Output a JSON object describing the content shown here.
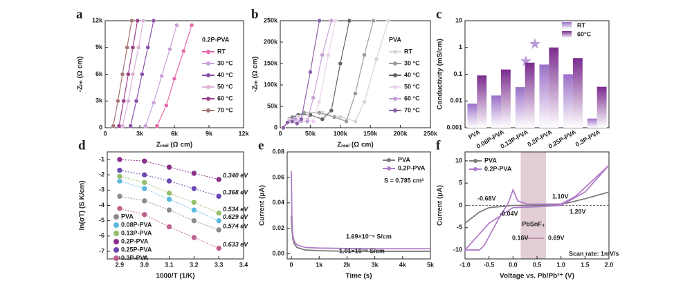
{
  "chart_data": [
    {
      "type": "line",
      "markers": true,
      "panel_label": "a",
      "x_label": "Zᵣₑₐₗ (Ω cm)",
      "y_label": "-Zᵢₘ (Ω cm)",
      "xlim": [
        0,
        12000
      ],
      "ylim": [
        0,
        12000
      ],
      "xticks": [
        0,
        {
          "value": 3000,
          "label": "3k"
        },
        {
          "value": 6000,
          "label": "6k"
        },
        {
          "value": 9000,
          "label": "9k"
        },
        {
          "value": 12000,
          "label": "12k"
        }
      ],
      "yticks": [
        0,
        {
          "value": 3000,
          "label": "3k"
        },
        {
          "value": 6000,
          "label": "6k"
        },
        {
          "value": 9000,
          "label": "9k"
        },
        {
          "value": 12000,
          "label": "12k"
        }
      ],
      "legend_title": "0.2P-PVA",
      "series": [
        {
          "name": "RT",
          "color": "#e46aa8",
          "x": [
            4500,
            5300,
            6000,
            6800,
            7500
          ],
          "values": [
            200,
            2500,
            5500,
            8600,
            11500
          ]
        },
        {
          "name": "30 °C",
          "color": "#c9a0dc",
          "x": [
            3500,
            4200,
            4900,
            5600,
            6200
          ],
          "values": [
            200,
            2800,
            5800,
            8800,
            11500
          ]
        },
        {
          "name": "40 °C",
          "color": "#8a4fa8",
          "x": [
            2200,
            2700,
            3200,
            3700,
            4200
          ],
          "values": [
            200,
            3000,
            6000,
            9000,
            12000
          ]
        },
        {
          "name": "50 °C",
          "color": "#d9b2d6",
          "x": [
            1500,
            2000,
            2400,
            2900,
            3300
          ],
          "values": [
            200,
            3000,
            6000,
            9000,
            12000
          ]
        },
        {
          "name": "60 °C",
          "color": "#9a3f8a",
          "x": [
            1200,
            1600,
            2000,
            2400,
            2800
          ],
          "values": [
            200,
            3000,
            6000,
            9000,
            12000
          ]
        },
        {
          "name": "70 °C",
          "color": "#a87474",
          "x": [
            700,
            1100,
            1500,
            1900,
            2300
          ],
          "values": [
            200,
            3000,
            6000,
            9000,
            12000
          ]
        }
      ]
    },
    {
      "type": "line",
      "markers": true,
      "panel_label": "b",
      "x_label": "Zᵣₑₐₗ (Ω cm)",
      "y_label": "-Zᵢₘ (Ω cm)",
      "xlim": [
        0,
        250000
      ],
      "ylim": [
        0,
        250000
      ],
      "xticks": [
        0,
        {
          "value": 50000,
          "label": "50k"
        },
        {
          "value": 100000,
          "label": "100k"
        },
        {
          "value": 150000,
          "label": "150k"
        },
        {
          "value": 200000,
          "label": "200k"
        },
        {
          "value": 250000,
          "label": "250k"
        }
      ],
      "yticks": [
        0,
        {
          "value": 50000,
          "label": "50k"
        },
        {
          "value": 100000,
          "label": "100k"
        },
        {
          "value": 150000,
          "label": "150k"
        },
        {
          "value": 200000,
          "label": "200k"
        },
        {
          "value": 250000,
          "label": "250k"
        }
      ],
      "legend_title": "PVA",
      "series": [
        {
          "name": "RT",
          "color": "#d4d4d4",
          "x": [
            5000,
            20000,
            40000,
            70000,
            100000,
            125000,
            140000,
            160000,
            180000
          ],
          "values": [
            0,
            25000,
            35000,
            35000,
            25000,
            15000,
            60000,
            160000,
            250000
          ]
        },
        {
          "name": "30 °C",
          "color": "#9a9a9a",
          "x": [
            5000,
            20000,
            40000,
            65000,
            90000,
            110000,
            125000,
            140000,
            155000
          ],
          "values": [
            0,
            25000,
            35000,
            35000,
            25000,
            15000,
            80000,
            170000,
            250000
          ]
        },
        {
          "name": "40 °C",
          "color": "#636363",
          "x": [
            5000,
            15000,
            30000,
            50000,
            70000,
            85000,
            100000,
            115000
          ],
          "values": [
            0,
            20000,
            30000,
            30000,
            20000,
            40000,
            150000,
            250000
          ]
        },
        {
          "name": "50 °C",
          "color": "#ecd3ee",
          "x": [
            5000,
            15000,
            30000,
            45000,
            55000,
            65000,
            80000,
            92000
          ],
          "values": [
            0,
            18000,
            25000,
            20000,
            15000,
            60000,
            170000,
            250000
          ]
        },
        {
          "name": "60 °C",
          "color": "#c6a0d4",
          "x": [
            5000,
            15000,
            25000,
            35000,
            45000,
            55000,
            70000,
            85000
          ],
          "values": [
            0,
            15000,
            20000,
            15000,
            15000,
            70000,
            170000,
            250000
          ]
        },
        {
          "name": "70 °C",
          "color": "#8a60a8",
          "x": [
            5000,
            12000,
            20000,
            28000,
            35000,
            50000,
            65000
          ],
          "values": [
            0,
            12000,
            15000,
            10000,
            20000,
            130000,
            250000
          ]
        }
      ]
    },
    {
      "type": "bar",
      "panel_label": "c",
      "y_label": "Conductivity (mS/cm)",
      "yscale": "log",
      "ylim": [
        0.001,
        10
      ],
      "yticks": [
        0.001,
        0.01,
        0.1,
        1,
        10
      ],
      "categories": [
        "PVA",
        "0.08P-PVA",
        "0.13P-PVA",
        "0.2P-PVA",
        "0.25P-PVA",
        "0.3P-PVA"
      ],
      "series": [
        {
          "name": "RT",
          "color": "#9b6fc8",
          "values": [
            0.008,
            0.016,
            0.033,
            0.23,
            0.1,
            0.0022
          ]
        },
        {
          "name": "60°C",
          "color": "#7a2c8e",
          "values": [
            0.09,
            0.15,
            0.27,
            1.0,
            0.4,
            0.034
          ]
        }
      ]
    },
    {
      "type": "scatter",
      "panel_label": "d",
      "x_label": "1000/T (1/K)",
      "y_label": "ln(σT) (S K/cm)",
      "xlim": [
        2.85,
        3.4
      ],
      "ylim": [
        -7.5,
        -0.5
      ],
      "xticks": [
        2.9,
        {
          "value": 3.0,
          "label": "3.0"
        },
        3.1,
        3.2,
        3.3,
        3.4
      ],
      "yticks": [
        -1,
        -2,
        -3,
        -4,
        -5,
        -6,
        -7
      ],
      "x": [
        2.9,
        3.0,
        3.1,
        3.2,
        3.3
      ],
      "series": [
        {
          "name": "PVA",
          "color": "#8c8c8c",
          "values": [
            -3.4,
            -3.7,
            -4.3,
            -5.0,
            -5.6
          ],
          "annotation": "0.574 eV"
        },
        {
          "name": "0.08P-PVA",
          "color": "#5bb8e0",
          "values": [
            -2.4,
            -2.9,
            -3.6,
            -4.3,
            -5.0
          ],
          "annotation": "0.629 eV"
        },
        {
          "name": "0.13P-PVA",
          "color": "#93bf6a",
          "values": [
            -2.1,
            -2.5,
            -3.2,
            -3.8,
            -4.5
          ],
          "annotation": "0.534 eV"
        },
        {
          "name": "0.2P-PVA",
          "color": "#8a2f8a",
          "values": [
            -1.0,
            -1.1,
            -1.5,
            -1.9,
            -2.3
          ],
          "annotation": "0.340 eV"
        },
        {
          "name": "0.25P-PVA",
          "color": "#6a48b0",
          "values": [
            -1.7,
            -2.0,
            -2.4,
            -2.9,
            -3.4
          ],
          "annotation": "0.368 eV"
        },
        {
          "name": "0.3P-PVA",
          "color": "#c0608e",
          "values": [
            -4.2,
            -4.6,
            -5.4,
            -6.1,
            -6.8
          ],
          "annotation": "0.633 eV"
        }
      ]
    },
    {
      "type": "line",
      "panel_label": "e",
      "x_label": "Time (s)",
      "y_label": "Current (μA)",
      "xlim": [
        -150,
        5000
      ],
      "ylim": [
        -0.004,
        0.08
      ],
      "xticks": [
        0,
        {
          "value": 1000,
          "label": "1k"
        },
        {
          "value": 2000,
          "label": "2k"
        },
        {
          "value": 3000,
          "label": "3k"
        },
        {
          "value": 4000,
          "label": "4k"
        },
        {
          "value": 5000,
          "label": "5k"
        }
      ],
      "yticks": [
        {
          "value": 0,
          "label": "0.00"
        },
        {
          "value": 0.02,
          "label": "0.02"
        },
        {
          "value": 0.04,
          "label": "0.04"
        },
        {
          "value": 0.06,
          "label": "0.06"
        },
        {
          "value": 0.08,
          "label": "0.08"
        }
      ],
      "x": [
        0,
        20,
        50,
        100,
        200,
        500,
        1000,
        2000,
        3000,
        4000,
        5000
      ],
      "annotations": [
        "S = 0.785 cm²",
        "1.69×10⁻⁹ S/cm",
        "1.01×10⁻⁹ S/cm"
      ],
      "series": [
        {
          "name": "PVA",
          "color": "#7a7a7a",
          "values": [
            0.03,
            0.02,
            0.012,
            0.008,
            0.005,
            0.003,
            0.0025,
            0.002,
            0.002,
            0.002,
            0.002
          ]
        },
        {
          "name": "0.2P-PVA",
          "color": "#b07cc8",
          "values": [
            0.065,
            0.03,
            0.015,
            0.01,
            0.007,
            0.005,
            0.0045,
            0.0042,
            0.004,
            0.004,
            0.004
          ]
        }
      ]
    },
    {
      "type": "line",
      "panel_label": "f",
      "x_label": "Voltage vs. Pb/Pb²⁺ (V)",
      "y_label": "Current (μA)",
      "xlim": [
        -1,
        2
      ],
      "ylim": [
        -12,
        12
      ],
      "xticks": [
        {
          "value": -1,
          "label": "-1.0"
        },
        {
          "value": -0.5,
          "label": "-0.5"
        },
        {
          "value": 0,
          "label": "0.0"
        },
        {
          "value": 0.5,
          "label": "0.5"
        },
        {
          "value": 1,
          "label": "1.0"
        },
        {
          "value": 1.5,
          "label": "1.5"
        },
        {
          "value": 2,
          "label": "2.0"
        }
      ],
      "yticks": [
        -10,
        -5,
        0,
        5,
        10
      ],
      "shade": {
        "from": 0.16,
        "to": 0.69,
        "label": "PbSnF₄"
      },
      "annotations": [
        "-0.68V",
        "-0.04V",
        "1.10V",
        "1.20V",
        "0.16V",
        "0.69V",
        "Scan rate: 1mV/s"
      ],
      "series": [
        {
          "name": "PVA",
          "color": "#7a7a7a",
          "x": [
            -1,
            -0.7,
            -0.5,
            0,
            0.5,
            1,
            1.5,
            2
          ],
          "values": [
            -4,
            -1.5,
            -0.5,
            0,
            0,
            0.2,
            1.5,
            3
          ]
        },
        {
          "name": "0.2P-PVA",
          "color": "#b07cc8",
          "x": [
            -1,
            -0.7,
            -0.6,
            -0.3,
            -0.1,
            0,
            0.1,
            0.3,
            1,
            1.3,
            1.6,
            1.8,
            2,
            1.5,
            1,
            0.5,
            0,
            -0.5,
            -1
          ],
          "values": [
            -10,
            -10,
            -9,
            -3,
            0.5,
            3.5,
            1,
            0.3,
            0.3,
            2,
            5,
            7,
            9,
            3,
            0,
            -0.3,
            -0.5,
            -4,
            -10
          ]
        }
      ]
    }
  ]
}
